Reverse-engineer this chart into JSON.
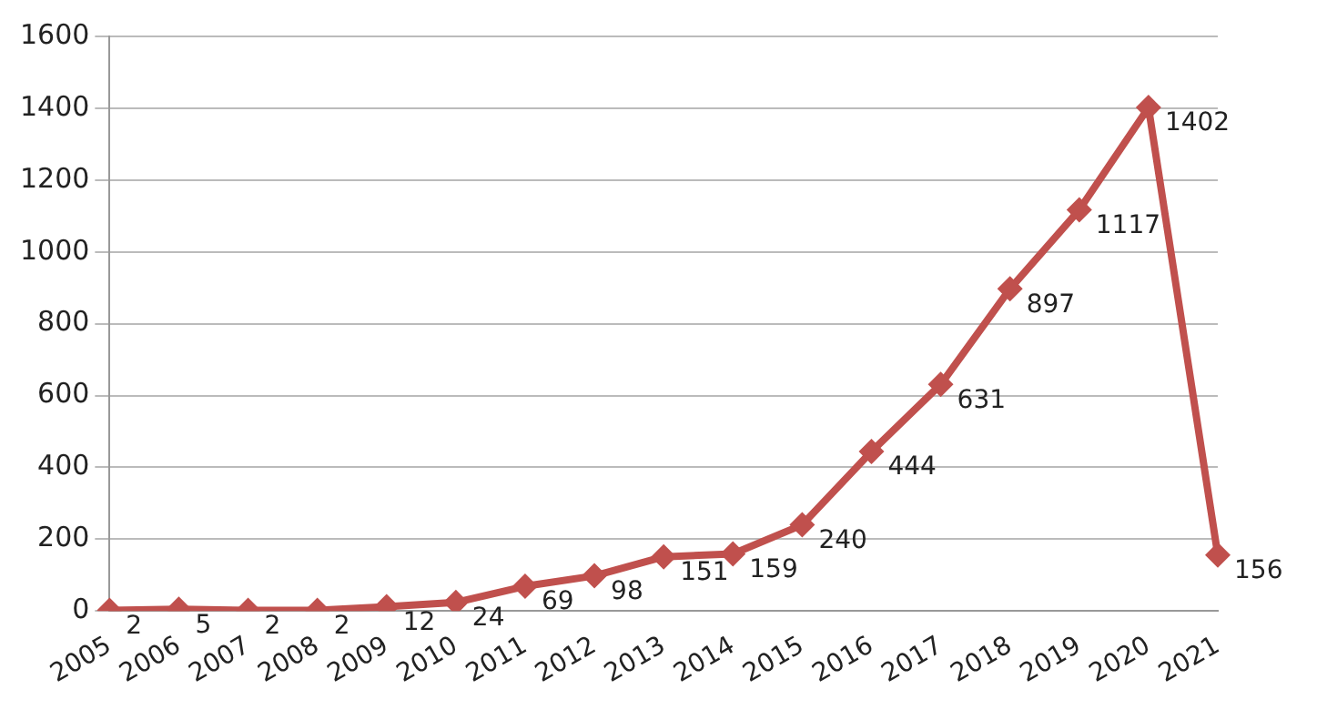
{
  "chart_data": {
    "type": "line",
    "categories": [
      "2005",
      "2006",
      "2007",
      "2008",
      "2009",
      "2010",
      "2011",
      "2012",
      "2013",
      "2014",
      "2015",
      "2016",
      "2017",
      "2018",
      "2019",
      "2020",
      "2021"
    ],
    "series": [
      {
        "color": "#c0504d",
        "values": [
          2,
          5,
          2,
          2,
          12,
          24,
          69,
          98,
          151,
          159,
          240,
          444,
          631,
          897,
          1117,
          1402,
          156
        ]
      }
    ],
    "ylim": [
      0,
      1600
    ],
    "yticks": [
      0,
      200,
      400,
      600,
      800,
      1000,
      1200,
      1400,
      1600
    ],
    "grid": "y",
    "legend": false,
    "marker": "diamond",
    "line_style": "solid",
    "data_labels": true
  }
}
